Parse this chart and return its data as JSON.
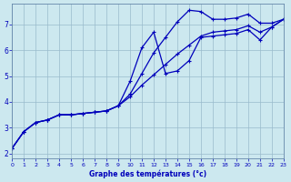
{
  "xlabel": "Graphe des températures (°c)",
  "background_color": "#cce8ef",
  "line_color": "#0000bb",
  "grid_color": "#99bbcc",
  "xlim": [
    0,
    23
  ],
  "ylim": [
    1.8,
    7.8
  ],
  "xticks": [
    0,
    1,
    2,
    3,
    4,
    5,
    6,
    7,
    8,
    9,
    10,
    11,
    12,
    13,
    14,
    15,
    16,
    17,
    18,
    19,
    20,
    21,
    22,
    23
  ],
  "yticks": [
    2,
    3,
    4,
    5,
    6,
    7
  ],
  "hours": [
    0,
    1,
    2,
    3,
    4,
    5,
    6,
    7,
    8,
    9,
    10,
    11,
    12,
    13,
    14,
    15,
    16,
    17,
    18,
    19,
    20,
    21,
    22,
    23
  ],
  "line_spike": [
    2.2,
    2.85,
    3.2,
    3.3,
    3.5,
    3.5,
    3.55,
    3.6,
    3.65,
    3.85,
    4.8,
    6.1,
    6.7,
    5.1,
    5.2,
    5.6,
    6.5,
    6.55,
    6.6,
    6.65,
    6.8,
    6.4,
    6.9,
    7.2
  ],
  "line_top": [
    2.2,
    2.85,
    3.2,
    3.3,
    3.5,
    3.5,
    3.55,
    3.6,
    3.65,
    3.85,
    4.3,
    5.1,
    5.9,
    6.5,
    7.1,
    7.55,
    7.5,
    7.2,
    7.2,
    7.25,
    7.4,
    7.05,
    7.05,
    7.2
  ],
  "line_linear": [
    2.2,
    2.85,
    3.2,
    3.3,
    3.5,
    3.5,
    3.55,
    3.6,
    3.65,
    3.85,
    4.2,
    4.65,
    5.05,
    5.45,
    5.85,
    6.2,
    6.55,
    6.7,
    6.75,
    6.8,
    6.95,
    6.7,
    6.9,
    7.2
  ]
}
